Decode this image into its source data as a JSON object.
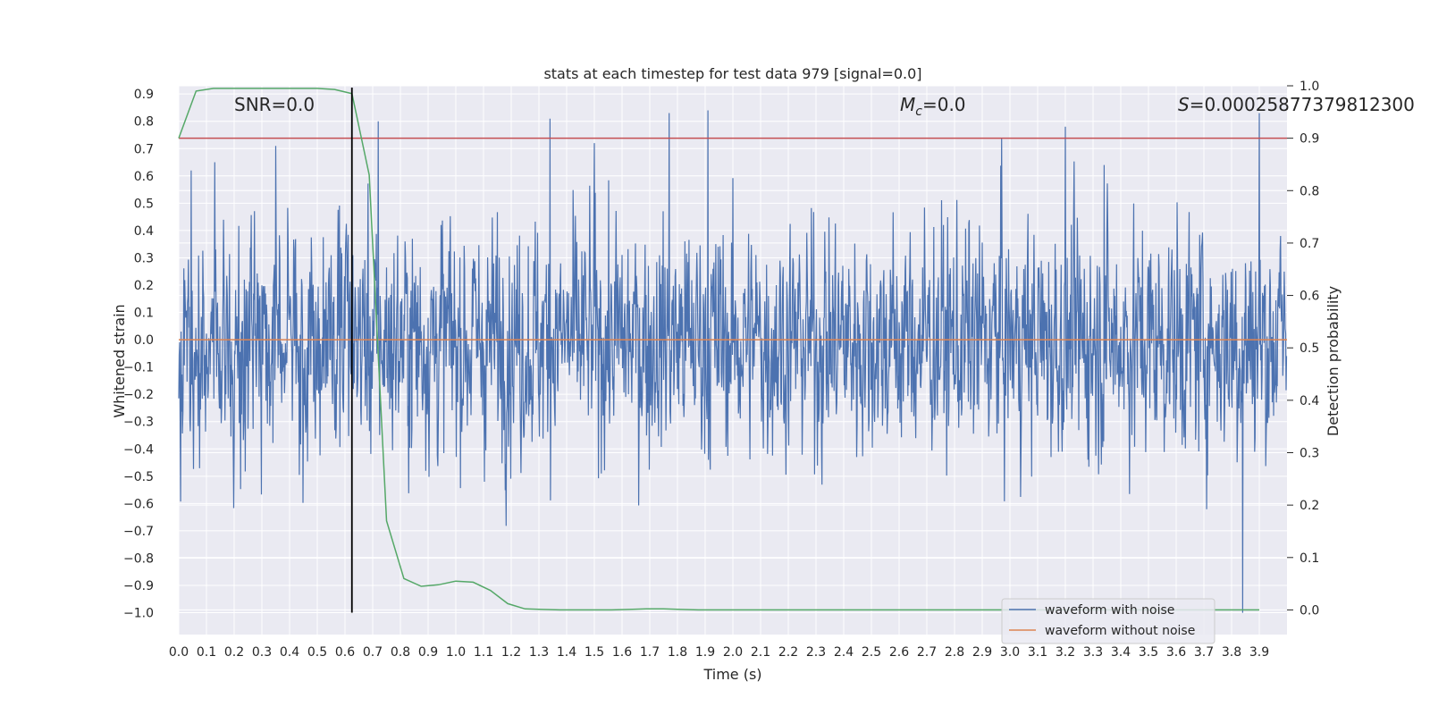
{
  "chart_data": {
    "type": "line",
    "title": "stats at each timestep for test data 979 [signal=0.0]",
    "xlabel": "Time (s)",
    "ylabel": "Whitened strain",
    "ylabel_right": "Detection probability",
    "xlim": [
      0.0,
      4.0
    ],
    "ylim": [
      -1.08,
      0.93
    ],
    "ylim_right": [
      -0.047,
      1.0
    ],
    "x_ticks": [
      "0.0",
      "0.1",
      "0.2",
      "0.3",
      "0.4",
      "0.5",
      "0.6",
      "0.7",
      "0.8",
      "0.9",
      "1.0",
      "1.1",
      "1.2",
      "1.3",
      "1.4",
      "1.5",
      "1.6",
      "1.7",
      "1.8",
      "1.9",
      "2.0",
      "2.1",
      "2.2",
      "2.3",
      "2.4",
      "2.5",
      "2.6",
      "2.7",
      "2.8",
      "2.9",
      "3.0",
      "3.1",
      "3.2",
      "3.3",
      "3.4",
      "3.5",
      "3.6",
      "3.7",
      "3.8",
      "3.9"
    ],
    "y_ticks": [
      "0.9",
      "0.8",
      "0.7",
      "0.6",
      "0.5",
      "0.4",
      "0.3",
      "0.2",
      "0.1",
      "0.0",
      "−0.1",
      "−0.2",
      "−0.3",
      "−0.4",
      "−0.5",
      "−0.6",
      "−0.7",
      "−0.8",
      "−0.9",
      "−1.0"
    ],
    "y_ticks_right": [
      "1.0",
      "0.9",
      "0.8",
      "0.7",
      "0.6",
      "0.5",
      "0.4",
      "0.3",
      "0.2",
      "0.1",
      "0.0"
    ],
    "annotations": {
      "snr": "SNR=0.0",
      "mc_symbol": "M",
      "mc_sub": "c",
      "mc_value": "=0.0",
      "s_symbol": "S",
      "s_value": "=0.00025877379812300"
    },
    "threshold": 0.9,
    "marker_time": 0.625,
    "series": [
      {
        "name": "waveform with noise",
        "color": "#4c72b0",
        "description": "whitened noise, roughly within ±0.55 with spikes up to ±0.85; one spike to -1.0 near t=3.84",
        "peaks": [
          [
            0.045,
            0.62
          ],
          [
            0.13,
            0.65
          ],
          [
            0.35,
            0.71
          ],
          [
            0.72,
            0.8
          ],
          [
            1.34,
            0.81
          ],
          [
            1.5,
            0.72
          ],
          [
            1.77,
            0.83
          ],
          [
            1.91,
            0.84
          ],
          [
            2.97,
            0.74
          ],
          [
            3.2,
            0.78
          ],
          [
            3.34,
            0.64
          ],
          [
            3.84,
            -1.0
          ],
          [
            3.9,
            0.83
          ]
        ]
      },
      {
        "name": "waveform without noise",
        "color": "#dd8452",
        "description": "flat at 0.0",
        "x": [
          0.0,
          4.0
        ],
        "values": [
          0.0,
          0.0
        ]
      },
      {
        "name": "detection probability",
        "color": "#55a868",
        "axis": "right",
        "x": [
          0.0,
          0.0625,
          0.125,
          0.1875,
          0.25,
          0.3125,
          0.375,
          0.4375,
          0.5,
          0.5625,
          0.625,
          0.6875,
          0.75,
          0.8125,
          0.875,
          0.9375,
          1.0,
          1.0625,
          1.125,
          1.1875,
          1.25,
          1.3125,
          1.375,
          1.4375,
          1.5,
          1.5625,
          1.625,
          1.6875,
          1.75,
          1.8125,
          1.875,
          1.9375,
          2.0,
          2.5,
          3.0,
          3.5,
          3.9
        ],
        "values": [
          0.9,
          0.99,
          0.995,
          0.995,
          0.995,
          0.995,
          0.995,
          0.995,
          0.995,
          0.993,
          0.985,
          0.83,
          0.17,
          0.06,
          0.045,
          0.048,
          0.055,
          0.053,
          0.037,
          0.012,
          0.002,
          0.001,
          0.0,
          0.0,
          0.0,
          0.0,
          0.001,
          0.002,
          0.002,
          0.001,
          0.0,
          0.0,
          0.0,
          0.0,
          0.0,
          0.0,
          0.0
        ]
      }
    ],
    "threshold_color": "#c44e52",
    "legend": {
      "position": "bottom-right",
      "entries": [
        {
          "label": "waveform with noise",
          "color": "#4c72b0"
        },
        {
          "label": "waveform without noise",
          "color": "#dd8452"
        }
      ]
    },
    "grid": true
  }
}
